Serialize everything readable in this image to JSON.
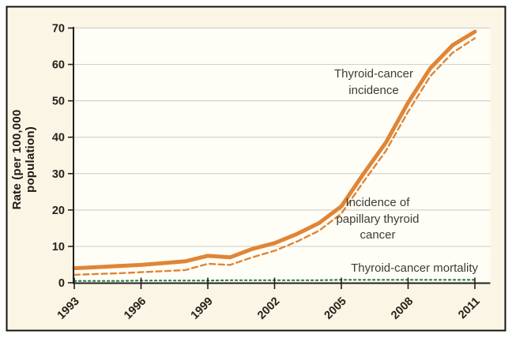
{
  "figure": {
    "background": "#FAF5E5",
    "plot_background": "#FFFEF6",
    "border_color": "#16130F",
    "grid_color": "#D3D2CE",
    "axis_color": "#231F20",
    "tick_text_color": "#26211A",
    "annotation_color": "#403B31"
  },
  "chart_data": {
    "type": "line",
    "title": "",
    "xlabel": "",
    "ylabel": "Rate (per 100,000 population)",
    "xlim": [
      1993,
      2011
    ],
    "ylim": [
      0,
      70
    ],
    "x_ticks": [
      1993,
      1996,
      1999,
      2002,
      2005,
      2008,
      2011
    ],
    "x_tick_labels": [
      "1993",
      "1996",
      "1999",
      "2002",
      "2005",
      "2008",
      "2011"
    ],
    "y_ticks": [
      0,
      10,
      20,
      30,
      40,
      50,
      60,
      70
    ],
    "grid": "horizontal",
    "legend_position": "inline-annotations",
    "years": [
      1993,
      1994,
      1995,
      1996,
      1997,
      1998,
      1999,
      2000,
      2001,
      2002,
      2003,
      2004,
      2005,
      2006,
      2007,
      2008,
      2009,
      2010,
      2011
    ],
    "series": [
      {
        "name": "Thyroid-cancer incidence",
        "style": "solid",
        "color": "#DF8537",
        "width": 5,
        "values": [
          4.0,
          4.3,
          4.6,
          4.9,
          5.4,
          5.9,
          7.4,
          7.0,
          9.3,
          10.9,
          13.4,
          16.4,
          21.0,
          30.0,
          38.5,
          49.5,
          59.0,
          65.3,
          69.0
        ]
      },
      {
        "name": "Incidence of papillary thyroid cancer",
        "style": "dashed",
        "color": "#DF8537",
        "width": 2.4,
        "values": [
          2.2,
          2.4,
          2.6,
          2.9,
          3.2,
          3.5,
          5.2,
          4.9,
          7.0,
          8.8,
          11.3,
          14.3,
          19.0,
          27.8,
          36.2,
          47.0,
          56.8,
          63.2,
          67.2
        ]
      },
      {
        "name": "Thyroid-cancer mortality",
        "style": "dotted",
        "color": "#2E7D4E",
        "width": 2.2,
        "values": [
          0.5,
          0.5,
          0.5,
          0.6,
          0.6,
          0.6,
          0.6,
          0.7,
          0.7,
          0.7,
          0.7,
          0.7,
          0.8,
          0.8,
          0.8,
          0.8,
          0.8,
          0.8,
          0.8
        ]
      }
    ],
    "annotations": {
      "incidence_label": "Thyroid-cancer\nincidence",
      "papillary_label": "Incidence of\npapillary thyroid\ncancer",
      "mortality_label": "Thyroid-cancer mortality"
    }
  }
}
